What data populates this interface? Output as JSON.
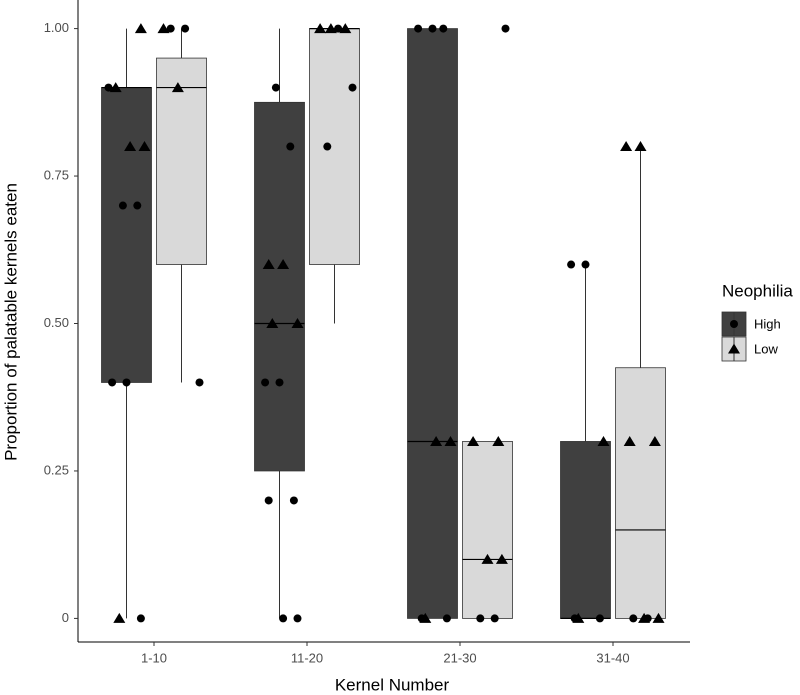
{
  "chart_data": {
    "type": "boxplot",
    "x_label": "Kernel Number",
    "y_label": "Proportion of palatable kernels eaten",
    "categories": [
      "1-10",
      "11-20",
      "21-30",
      "31-40"
    ],
    "legend_title": "Neophilia",
    "legend_position": "right",
    "groups": [
      {
        "name": "High",
        "color": "#404040",
        "shape": "circle"
      },
      {
        "name": "Low",
        "color": "#d9d9d9",
        "shape": "triangle"
      }
    ],
    "ylim": [
      -0.04,
      1.04
    ],
    "yticks": [
      {
        "value": 0,
        "label": "0"
      },
      0.25,
      {
        "value": 0.5,
        "label": "0.50"
      },
      0.75,
      {
        "value": 1,
        "label": "1.00"
      }
    ],
    "boxes": [
      {
        "category": 0,
        "group": 0,
        "min": 0,
        "q1": 0.4,
        "median": 0.9,
        "q3": 0.9,
        "max": 1,
        "circles": [
          0.9,
          0.7,
          0.7,
          0.4,
          0.4,
          0
        ],
        "triangles": [
          1,
          0.9,
          0.8,
          0.8,
          0
        ]
      },
      {
        "category": 0,
        "group": 1,
        "min": 0.4,
        "q1": 0.6,
        "median": 0.9,
        "q3": 0.95,
        "max": 1,
        "circles": [
          1,
          1,
          0.4
        ],
        "triangles": [
          1,
          0.9
        ]
      },
      {
        "category": 1,
        "group": 0,
        "min": 0,
        "q1": 0.25,
        "median": 0.5,
        "q3": 0.875,
        "max": 1,
        "circles": [
          0.9,
          0.8,
          0.4,
          0.4,
          0.2,
          0.2,
          0,
          0
        ],
        "triangles": [
          0.6,
          0.6,
          0.5,
          0.5
        ]
      },
      {
        "category": 1,
        "group": 1,
        "min": 0.5,
        "q1": 0.6,
        "median": 1,
        "q3": 1,
        "max": 1,
        "circles": [
          1,
          0.9,
          0.8
        ],
        "triangles": [
          1,
          1,
          1
        ]
      },
      {
        "category": 2,
        "group": 0,
        "min": 0,
        "q1": 0,
        "median": 0.3,
        "q3": 1,
        "max": 1,
        "circles": [
          1,
          1,
          1,
          0,
          0
        ],
        "triangles": [
          0.3,
          0.3,
          0
        ]
      },
      {
        "category": 2,
        "group": 1,
        "min": 0,
        "q1": 0,
        "median": 0.1,
        "q3": 0.3,
        "max": 0.3,
        "circles": [
          1,
          0,
          0
        ],
        "triangles": [
          0.3,
          0.3,
          0.1,
          0.1
        ]
      },
      {
        "category": 3,
        "group": 0,
        "min": 0,
        "q1": 0,
        "median": 0,
        "q3": 0.3,
        "max": 0.6,
        "circles": [
          0.6,
          0.6,
          0,
          0
        ],
        "triangles": [
          0.3,
          0
        ]
      },
      {
        "category": 3,
        "group": 1,
        "min": 0,
        "q1": 0,
        "median": 0.15,
        "q3": 0.425,
        "max": 0.8,
        "circles": [
          0,
          0
        ],
        "triangles": [
          0.8,
          0.8,
          0.3,
          0.3,
          0,
          0
        ]
      }
    ]
  }
}
